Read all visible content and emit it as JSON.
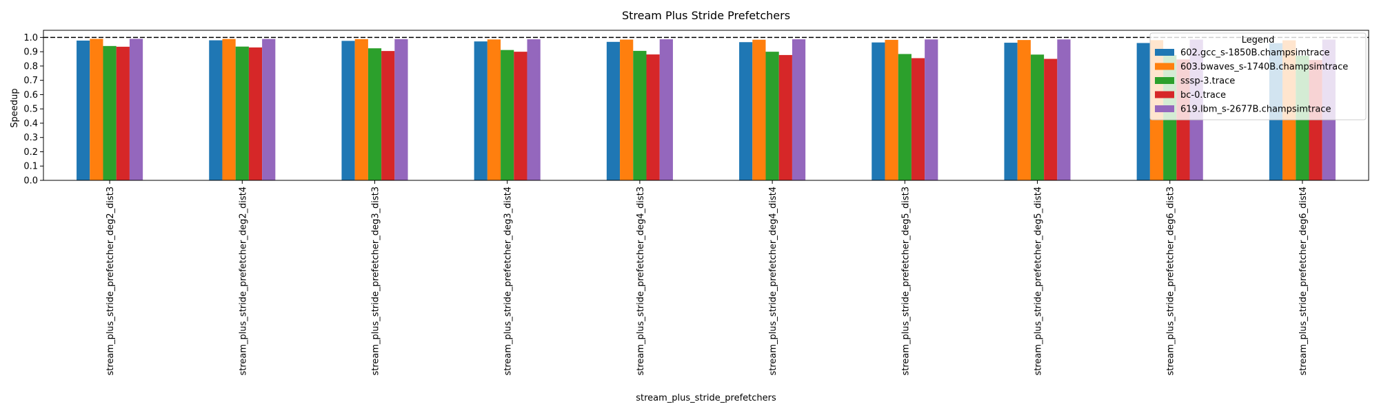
{
  "chart_data": {
    "type": "bar",
    "title": "Stream Plus Stride Prefetchers",
    "xlabel": "stream_plus_stride_prefetchers",
    "ylabel": "Speedup",
    "ylim": [
      0,
      1.05
    ],
    "yticks": [
      "0.0",
      "0.1",
      "0.2",
      "0.3",
      "0.4",
      "0.5",
      "0.6",
      "0.7",
      "0.8",
      "0.9",
      "1.0"
    ],
    "reference_line": 1.0,
    "grid": false,
    "legend": {
      "title": "Legend",
      "placement": "top-right"
    },
    "categories": [
      "stream_plus_stride_prefetcher_deg2_dist3",
      "stream_plus_stride_prefetcher_deg2_dist4",
      "stream_plus_stride_prefetcher_deg3_dist3",
      "stream_plus_stride_prefetcher_deg3_dist4",
      "stream_plus_stride_prefetcher_deg4_dist3",
      "stream_plus_stride_prefetcher_deg4_dist4",
      "stream_plus_stride_prefetcher_deg5_dist3",
      "stream_plus_stride_prefetcher_deg5_dist4",
      "stream_plus_stride_prefetcher_deg6_dist3",
      "stream_plus_stride_prefetcher_deg6_dist4"
    ],
    "series": [
      {
        "name": "602.gcc_s-1850B.champsimtrace",
        "color": "#1f77b4",
        "values": [
          0.978,
          0.98,
          0.976,
          0.972,
          0.969,
          0.967,
          0.965,
          0.963,
          0.961,
          0.96
        ]
      },
      {
        "name": "603.bwaves_s-1740B.champsimtrace",
        "color": "#ff7f0e",
        "values": [
          0.99,
          0.989,
          0.988,
          0.986,
          0.985,
          0.984,
          0.983,
          0.982,
          0.981,
          0.98
        ]
      },
      {
        "name": "sssp-3.trace",
        "color": "#2ca02c",
        "values": [
          0.94,
          0.936,
          0.924,
          0.912,
          0.906,
          0.9,
          0.884,
          0.88,
          0.876,
          0.872
        ]
      },
      {
        "name": "bc-0.trace",
        "color": "#d62728",
        "values": [
          0.935,
          0.93,
          0.905,
          0.9,
          0.881,
          0.877,
          0.855,
          0.85,
          0.846,
          0.842
        ]
      },
      {
        "name": "619.lbm_s-2677B.champsimtrace",
        "color": "#9467bd",
        "values": [
          0.99,
          0.989,
          0.988,
          0.987,
          0.987,
          0.987,
          0.986,
          0.986,
          0.985,
          0.985
        ]
      }
    ]
  }
}
